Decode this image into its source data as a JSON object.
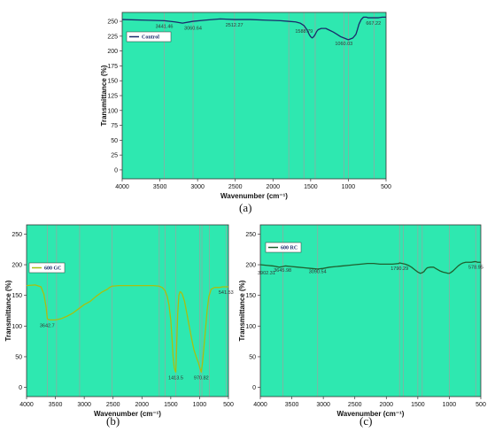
{
  "chart_data": [
    {
      "id": "a",
      "panel_label": "(a)",
      "type": "line",
      "xlabel": "Wavenumber (cm⁻¹)",
      "ylabel": "Transmittance (%)",
      "xlim": [
        4000,
        500
      ],
      "ylim": [
        -15,
        265
      ],
      "xticks": [
        4000,
        3500,
        3000,
        2500,
        2000,
        1500,
        1000,
        500
      ],
      "yticks": [
        0,
        25,
        50,
        75,
        100,
        125,
        150,
        175,
        200,
        225,
        250
      ],
      "color": "#1a2b6b",
      "series": [
        {
          "name": "Control",
          "x": [
            4000,
            3700,
            3440,
            3300,
            3200,
            3060,
            2900,
            2700,
            2510,
            2300,
            2100,
            1900,
            1800,
            1700,
            1640,
            1590,
            1550,
            1520,
            1500,
            1480,
            1460,
            1440,
            1420,
            1400,
            1360,
            1300,
            1250,
            1200,
            1150,
            1100,
            1060,
            1040,
            1020,
            1000,
            980,
            940,
            900,
            880,
            860,
            830,
            800,
            760,
            740,
            700,
            650,
            600,
            550,
            500
          ],
          "y": [
            253,
            252,
            251,
            249,
            247,
            250,
            252,
            254,
            253,
            253,
            252,
            251,
            250,
            249,
            247,
            243,
            236,
            228,
            224,
            222,
            224,
            228,
            233,
            236,
            238,
            238,
            235,
            232,
            228,
            224,
            222,
            221,
            220,
            219,
            220,
            222,
            228,
            236,
            245,
            253,
            257,
            257,
            256,
            256,
            256,
            256,
            257,
            257
          ]
        }
      ],
      "annotations": [
        {
          "x": 3441.46,
          "y": 251,
          "text": "3441.46"
        },
        {
          "x": 3060.64,
          "y": 248,
          "text": "3060.64"
        },
        {
          "x": 2512.27,
          "y": 253,
          "text": "2512.27"
        },
        {
          "x": 1588.79,
          "y": 243,
          "text": "1588.79"
        },
        {
          "x": 1060.03,
          "y": 222,
          "text": "1060.03"
        },
        {
          "x": 667.22,
          "y": 256,
          "text": "667.22"
        }
      ],
      "vlines": [
        3440,
        3060,
        2510,
        1790,
        1590,
        1440,
        1060,
        1000,
        660
      ]
    },
    {
      "id": "b",
      "panel_label": "(b)",
      "type": "line",
      "xlabel": "Wavenumber (cm⁻¹)",
      "ylabel": "Transmittance (%)",
      "xlim": [
        4000,
        500
      ],
      "ylim": [
        -15,
        265
      ],
      "xticks": [
        4000,
        3500,
        3000,
        2500,
        2000,
        1500,
        1000,
        500
      ],
      "yticks": [
        0,
        50,
        100,
        150,
        200,
        250
      ],
      "color": "#a8c010",
      "series": [
        {
          "name": "600 GC",
          "x": [
            4000,
            3850,
            3750,
            3700,
            3660,
            3640,
            3600,
            3500,
            3400,
            3300,
            3200,
            3100,
            3000,
            2900,
            2800,
            2700,
            2600,
            2560,
            2520,
            2400,
            2200,
            2000,
            1800,
            1700,
            1650,
            1600,
            1560,
            1530,
            1500,
            1480,
            1460,
            1440,
            1420,
            1413,
            1400,
            1380,
            1360,
            1340,
            1320,
            1300,
            1260,
            1220,
            1180,
            1140,
            1100,
            1060,
            1020,
            990,
            971,
            950,
            930,
            900,
            870,
            840,
            800,
            760,
            740,
            700,
            650,
            600,
            550,
            500
          ],
          "y": [
            166,
            167,
            164,
            152,
            130,
            112,
            110,
            110,
            112,
            116,
            121,
            128,
            135,
            140,
            148,
            155,
            160,
            163,
            165,
            166,
            166,
            166,
            166,
            165,
            163,
            158,
            148,
            134,
            110,
            82,
            50,
            32,
            26,
            25,
            60,
            120,
            150,
            156,
            155,
            152,
            140,
            120,
            100,
            80,
            62,
            50,
            40,
            30,
            25,
            40,
            60,
            92,
            125,
            148,
            160,
            162,
            163,
            163,
            163,
            164,
            164,
            164
          ]
        }
      ],
      "annotations": [
        {
          "x": 3642.7,
          "y": 110,
          "text": "3642.7"
        },
        {
          "x": 1413.5,
          "y": 25,
          "text": "1413.5"
        },
        {
          "x": 970.82,
          "y": 25,
          "text": "970.82"
        },
        {
          "x": 541.53,
          "y": 164,
          "text": "541.53"
        }
      ],
      "vlines": [
        3640,
        3480,
        3080,
        2520,
        1700,
        1600,
        1413,
        1000,
        960,
        830,
        540
      ]
    },
    {
      "id": "c",
      "panel_label": "(c)",
      "type": "line",
      "xlabel": "Wavenumber (cm⁻¹)",
      "ylabel": "Transmittance (%)",
      "xlim": [
        4000,
        500
      ],
      "ylim": [
        -15,
        265
      ],
      "xticks": [
        4000,
        3500,
        3000,
        2500,
        2000,
        1500,
        1000,
        500
      ],
      "yticks": [
        0,
        50,
        100,
        150,
        200,
        250
      ],
      "color": "#1f5f2e",
      "series": [
        {
          "name": "600 RC",
          "x": [
            4000,
            3900,
            3800,
            3700,
            3645,
            3600,
            3500,
            3400,
            3300,
            3200,
            3090,
            3000,
            2900,
            2800,
            2700,
            2600,
            2500,
            2400,
            2300,
            2200,
            2100,
            2000,
            1900,
            1800,
            1790,
            1700,
            1650,
            1600,
            1550,
            1500,
            1460,
            1430,
            1400,
            1380,
            1350,
            1300,
            1250,
            1200,
            1150,
            1100,
            1060,
            1020,
            1000,
            980,
            940,
            900,
            860,
            820,
            780,
            740,
            700,
            650,
            600,
            579,
            550,
            500
          ],
          "y": [
            200,
            199,
            198,
            196,
            197,
            198,
            197,
            196,
            195,
            194,
            193,
            194,
            196,
            197,
            198,
            199,
            200,
            201,
            202,
            202,
            201,
            201,
            201,
            202,
            203,
            201,
            199,
            196,
            192,
            188,
            186,
            187,
            189,
            192,
            195,
            196,
            196,
            193,
            190,
            188,
            187,
            186,
            186,
            187,
            190,
            194,
            198,
            201,
            203,
            204,
            204,
            204,
            205,
            205,
            204,
            204
          ]
        }
      ],
      "annotations": [
        {
          "x": 3902.31,
          "y": 196,
          "text": "3902.31"
        },
        {
          "x": 3645.98,
          "y": 200,
          "text": "3645.98"
        },
        {
          "x": 3090.54,
          "y": 198,
          "text": "3090.54"
        },
        {
          "x": 1790.29,
          "y": 203,
          "text": "1790.29"
        },
        {
          "x": 578.95,
          "y": 205,
          "text": "578.95"
        }
      ],
      "vlines": [
        3640,
        3090,
        1790,
        1730,
        1500,
        1430,
        1000,
        580
      ]
    }
  ]
}
